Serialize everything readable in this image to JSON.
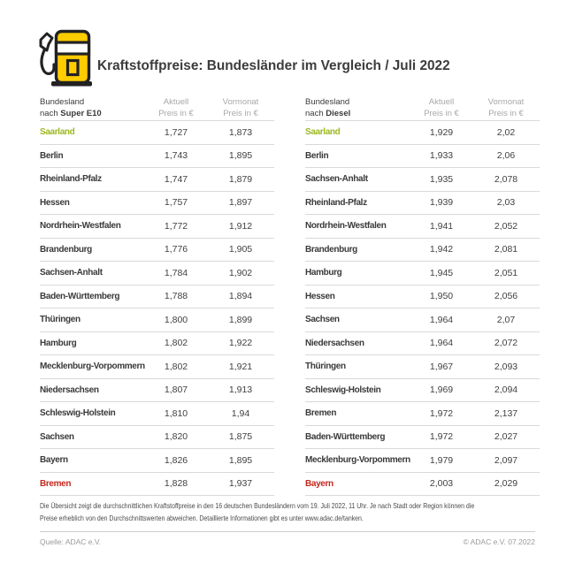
{
  "header": {
    "title": "Kraftstoffpreise: Bundesländer im Vergleich / Juli 2022",
    "icon": "fuel-pump-icon"
  },
  "chart_data": [
    {
      "type": "table",
      "title": "Super E10",
      "header": {
        "col1_line1": "Bundesland",
        "col1_prefix": "nach",
        "col1_bold": "Super E10",
        "col2_line1": "Aktuell",
        "col2_line2": "Preis in €",
        "col3_line1": "Vormonat",
        "col3_line2": "Preis in €"
      },
      "rows": [
        {
          "name": "Saarland",
          "aktuell": "1,727",
          "vormonat": "1,873",
          "highlight": "green"
        },
        {
          "name": "Berlin",
          "aktuell": "1,743",
          "vormonat": "1,895",
          "highlight": ""
        },
        {
          "name": "Rheinland-Pfalz",
          "aktuell": "1,747",
          "vormonat": "1,879",
          "highlight": ""
        },
        {
          "name": "Hessen",
          "aktuell": "1,757",
          "vormonat": "1,897",
          "highlight": ""
        },
        {
          "name": "Nordrhein-Westfalen",
          "aktuell": "1,772",
          "vormonat": "1,912",
          "highlight": ""
        },
        {
          "name": "Brandenburg",
          "aktuell": "1,776",
          "vormonat": "1,905",
          "highlight": ""
        },
        {
          "name": "Sachsen-Anhalt",
          "aktuell": "1,784",
          "vormonat": "1,902",
          "highlight": ""
        },
        {
          "name": "Baden-Württemberg",
          "aktuell": "1,788",
          "vormonat": "1,894",
          "highlight": ""
        },
        {
          "name": "Thüringen",
          "aktuell": "1,800",
          "vormonat": "1,899",
          "highlight": ""
        },
        {
          "name": "Hamburg",
          "aktuell": "1,802",
          "vormonat": "1,922",
          "highlight": ""
        },
        {
          "name": "Mecklenburg-Vorpommern",
          "aktuell": "1,802",
          "vormonat": "1,921",
          "highlight": ""
        },
        {
          "name": "Niedersachsen",
          "aktuell": "1,807",
          "vormonat": "1,913",
          "highlight": ""
        },
        {
          "name": "Schleswig-Holstein",
          "aktuell": "1,810",
          "vormonat": "1,94",
          "highlight": ""
        },
        {
          "name": "Sachsen",
          "aktuell": "1,820",
          "vormonat": "1,875",
          "highlight": ""
        },
        {
          "name": "Bayern",
          "aktuell": "1,826",
          "vormonat": "1,895",
          "highlight": ""
        },
        {
          "name": "Bremen",
          "aktuell": "1,828",
          "vormonat": "1,937",
          "highlight": "red"
        }
      ]
    },
    {
      "type": "table",
      "title": "Diesel",
      "header": {
        "col1_line1": "Bundesland",
        "col1_prefix": "nach",
        "col1_bold": "Diesel",
        "col2_line1": "Aktuell",
        "col2_line2": "Preis in €",
        "col3_line1": "Vormonat",
        "col3_line2": "Preis in €"
      },
      "rows": [
        {
          "name": "Saarland",
          "aktuell": "1,929",
          "vormonat": "2,02",
          "highlight": "green"
        },
        {
          "name": "Berlin",
          "aktuell": "1,933",
          "vormonat": "2,06",
          "highlight": ""
        },
        {
          "name": "Sachsen-Anhalt",
          "aktuell": "1,935",
          "vormonat": "2,078",
          "highlight": ""
        },
        {
          "name": "Rheinland-Pfalz",
          "aktuell": "1,939",
          "vormonat": "2,03",
          "highlight": ""
        },
        {
          "name": "Nordrhein-Westfalen",
          "aktuell": "1,941",
          "vormonat": "2,052",
          "highlight": ""
        },
        {
          "name": "Brandenburg",
          "aktuell": "1,942",
          "vormonat": "2,081",
          "highlight": ""
        },
        {
          "name": "Hamburg",
          "aktuell": "1,945",
          "vormonat": "2,051",
          "highlight": ""
        },
        {
          "name": "Hessen",
          "aktuell": "1,950",
          "vormonat": "2,056",
          "highlight": ""
        },
        {
          "name": "Sachsen",
          "aktuell": "1,964",
          "vormonat": "2,07",
          "highlight": ""
        },
        {
          "name": "Niedersachsen",
          "aktuell": "1,964",
          "vormonat": "2,072",
          "highlight": ""
        },
        {
          "name": "Thüringen",
          "aktuell": "1,967",
          "vormonat": "2,093",
          "highlight": ""
        },
        {
          "name": "Schleswig-Holstein",
          "aktuell": "1,969",
          "vormonat": "2,094",
          "highlight": ""
        },
        {
          "name": "Bremen",
          "aktuell": "1,972",
          "vormonat": "2,137",
          "highlight": ""
        },
        {
          "name": "Baden-Württemberg",
          "aktuell": "1,972",
          "vormonat": "2,027",
          "highlight": ""
        },
        {
          "name": "Mecklenburg-Vorpommern",
          "aktuell": "1,979",
          "vormonat": "2,097",
          "highlight": ""
        },
        {
          "name": "Bayern",
          "aktuell": "2,003",
          "vormonat": "2,029",
          "highlight": "red"
        }
      ]
    }
  ],
  "footnote_lines": [
    "Die Übersicht zeigt die durchschnittlichen Kraftstoffpreise in den 16 deutschen Bundesländern vom 19. Juli 2022, 11 Uhr. Je nach Stadt oder Region können die",
    "Preise erheblich von den Durchschnittswerten abweichen. Detaillierte Informationen gibt es unter www.adac.de/tanken."
  ],
  "footer": {
    "source": "Quelle: ADAC e.V.",
    "copyright": "© ADAC e.V. 07.2022"
  },
  "colors": {
    "highlight_green": "#9cb821",
    "highlight_red": "#c4281f",
    "brand_yellow": "#ffcc00"
  }
}
